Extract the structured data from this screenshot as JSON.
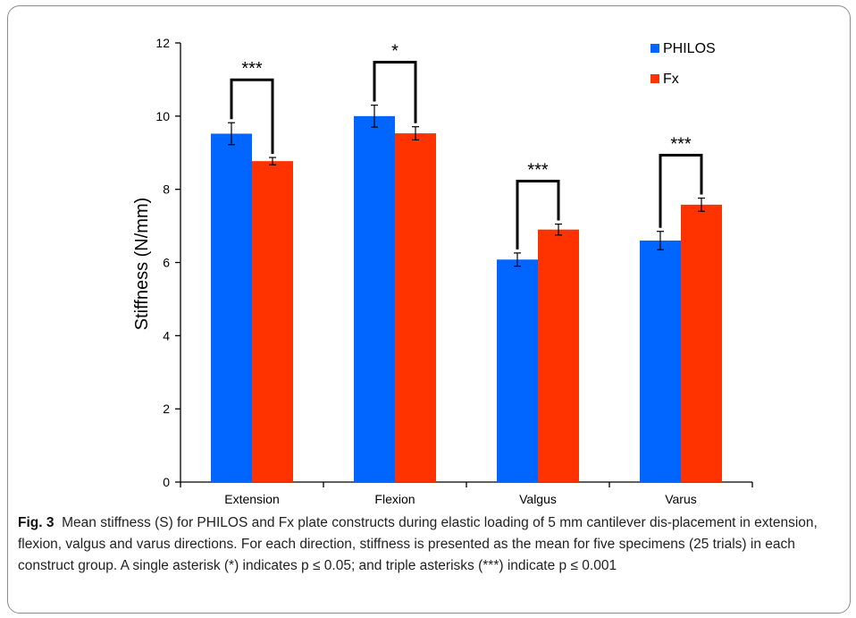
{
  "chart_data": {
    "type": "bar",
    "categories": [
      "Extension",
      "Flexion",
      "Valgus",
      "Varus"
    ],
    "series": [
      {
        "name": "PHILOS",
        "color": "#0066ff",
        "values": [
          9.52,
          10.0,
          6.08,
          6.6
        ],
        "errors": [
          0.3,
          0.3,
          0.18,
          0.25
        ]
      },
      {
        "name": "Fx",
        "color": "#ff3300",
        "values": [
          8.77,
          9.53,
          6.9,
          7.58
        ],
        "errors": [
          0.1,
          0.18,
          0.15,
          0.18
        ]
      }
    ],
    "significance": [
      "***",
      "*",
      "***",
      "***"
    ],
    "ylabel": "Stiffness (N/mm)",
    "xlabel": "",
    "ylim": [
      0,
      12
    ],
    "yticks": [
      0,
      2,
      4,
      6,
      8,
      10,
      12
    ],
    "grid": false,
    "legend": "top-right"
  },
  "caption": {
    "label": "Fig. 3",
    "text": "Mean stiffness (S) for PHILOS and Fx plate constructs during elastic loading of 5 mm cantilever dis-placement in extension, flexion, valgus and varus directions. For each direction, stiffness is presented as the mean for five specimens (25 trials) in each construct group. A single asterisk (*) indicates p ≤ 0.05; and triple asterisks (***) indicate p ≤ 0.001"
  }
}
